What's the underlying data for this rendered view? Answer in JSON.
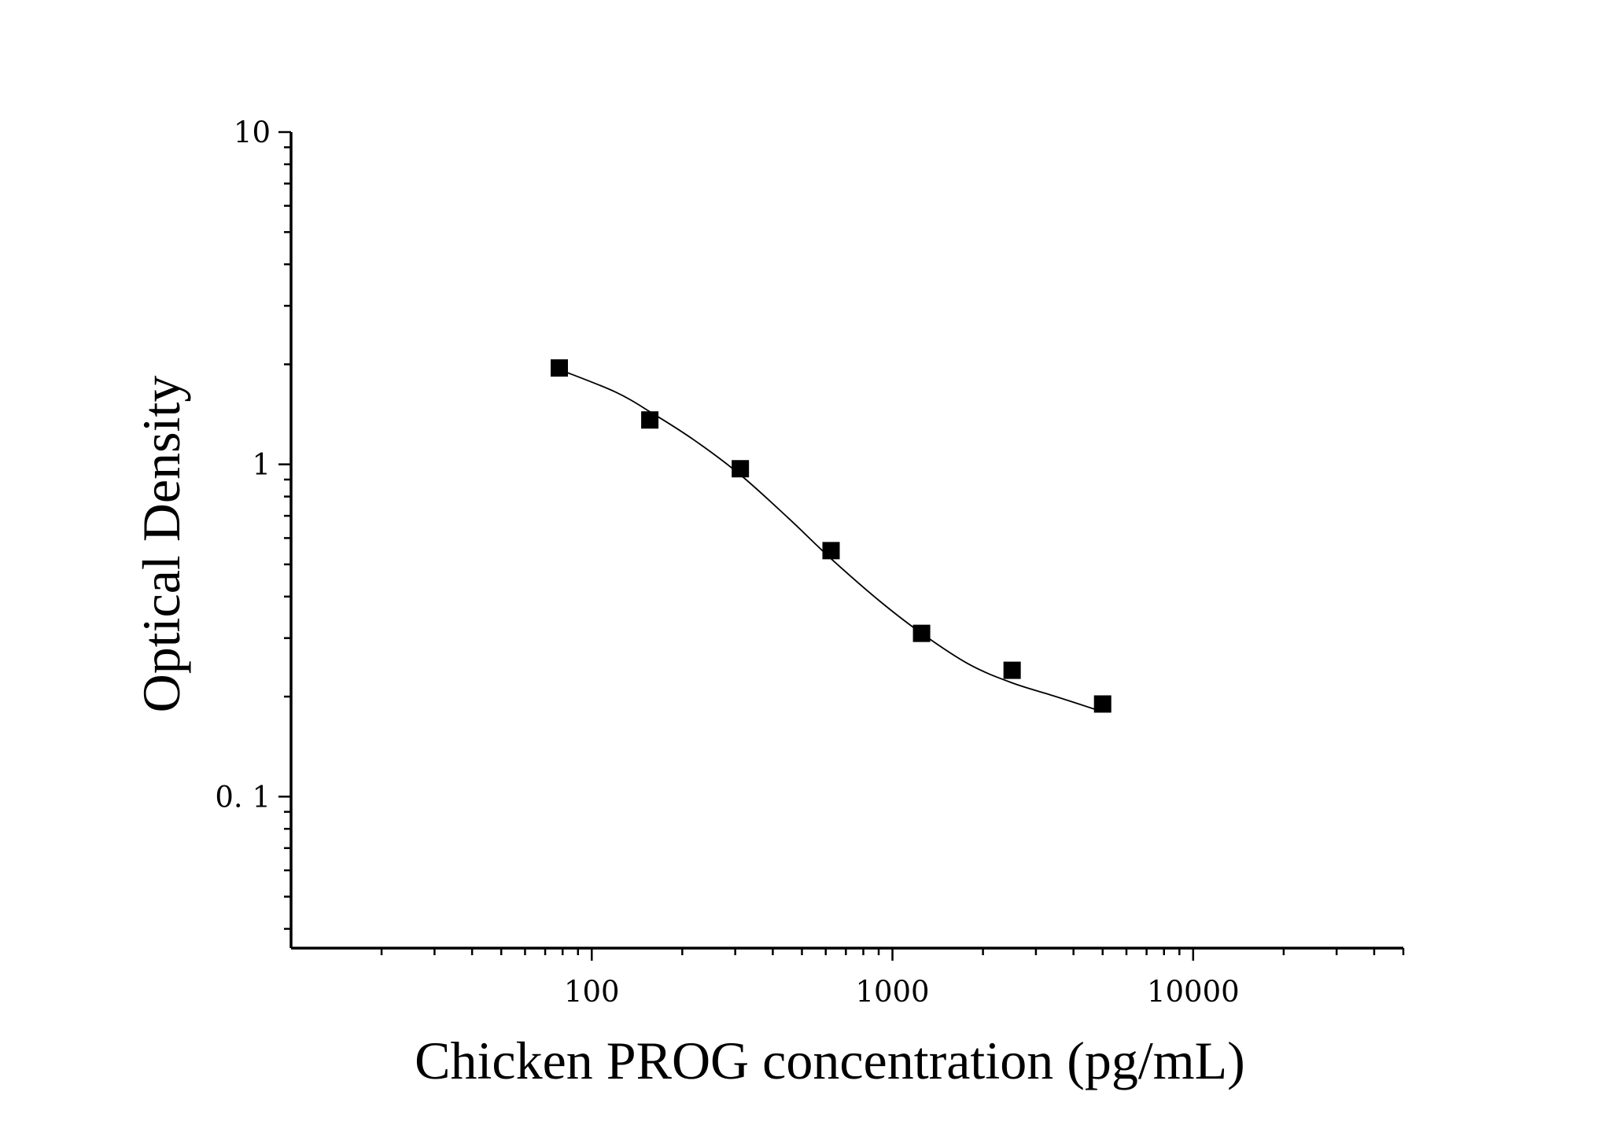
{
  "chart_data": {
    "type": "scatter",
    "xlabel": "Chicken PROG concentration (pg/mL)",
    "ylabel": "Optical Density",
    "xscale": "log",
    "yscale": "log",
    "xlim": [
      10,
      50000
    ],
    "ylim": [
      0.035,
      10
    ],
    "x_ticks": [
      {
        "value": 100,
        "label": "100"
      },
      {
        "value": 1000,
        "label": "1000"
      },
      {
        "value": 10000,
        "label": "10000"
      }
    ],
    "y_ticks": [
      {
        "value": 0.1,
        "label": "0. 1"
      },
      {
        "value": 1,
        "label": "1"
      },
      {
        "value": 10,
        "label": "10"
      }
    ],
    "series": [
      {
        "marker": "square",
        "color": "#000000",
        "x": [
          78,
          156,
          312,
          625,
          1250,
          2500,
          5000
        ],
        "y": [
          1.95,
          1.36,
          0.97,
          0.55,
          0.31,
          0.24,
          0.19
        ]
      }
    ],
    "fit_curve": {
      "color": "#000000",
      "x": [
        78,
        120,
        160,
        220,
        312,
        450,
        625,
        900,
        1250,
        1800,
        2500,
        3500,
        5000
      ],
      "y": [
        1.93,
        1.65,
        1.42,
        1.18,
        0.93,
        0.69,
        0.52,
        0.39,
        0.31,
        0.25,
        0.22,
        0.2,
        0.18
      ]
    },
    "grid": false,
    "legend": "none"
  }
}
